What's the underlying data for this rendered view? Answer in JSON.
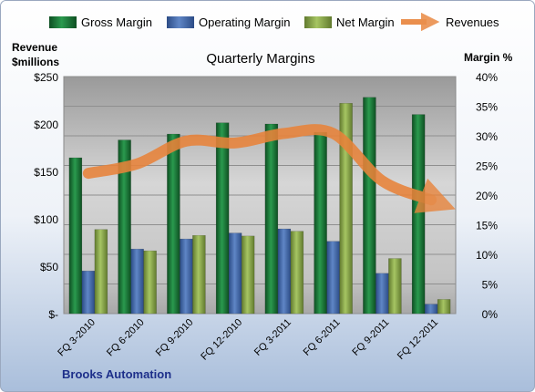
{
  "chart_data": {
    "type": "bar",
    "title": "Quarterly Margins",
    "ylabel_left_line1": "Revenue",
    "ylabel_left_line2": "$millions",
    "ylabel_right": "Margin %",
    "footer": "Brooks Automation",
    "categories": [
      "FQ 3-2010",
      "FQ 6-2010",
      "FQ 9-2010",
      "FQ 12-2010",
      "FQ 3-2011",
      "FQ 6-2011",
      "FQ 9-2011",
      "FQ 12-2011"
    ],
    "left_axis": {
      "ticks": [
        "$-",
        "$50",
        "$100",
        "$150",
        "$200",
        "$250"
      ],
      "ylim": [
        0,
        250
      ]
    },
    "right_axis": {
      "ticks": [
        "0%",
        "5%",
        "10%",
        "15%",
        "20%",
        "25%",
        "30%",
        "35%",
        "40%"
      ],
      "ylim": [
        0,
        40
      ]
    },
    "series": [
      {
        "name": "Gross Margin",
        "kind": "bar",
        "axis": "right",
        "color": "#1e7a3c",
        "values": [
          26.3,
          29.3,
          30.3,
          32.2,
          32.0,
          30.6,
          36.5,
          33.6
        ]
      },
      {
        "name": "Operating Margin",
        "kind": "bar",
        "axis": "right",
        "color": "#4a6fae",
        "values": [
          7.2,
          10.9,
          12.6,
          13.6,
          14.3,
          12.2,
          6.8,
          1.6
        ]
      },
      {
        "name": "Net Margin",
        "kind": "bar",
        "axis": "right",
        "color": "#8cab52",
        "values": [
          14.2,
          10.6,
          13.2,
          13.1,
          13.9,
          35.5,
          9.3,
          2.4
        ]
      },
      {
        "name": "Revenues",
        "kind": "line-arrow",
        "axis": "left",
        "color": "#e8833a",
        "values": [
          148,
          158,
          182,
          180,
          190,
          190,
          140,
          120
        ]
      }
    ],
    "grid": true,
    "legend_position": "top"
  }
}
